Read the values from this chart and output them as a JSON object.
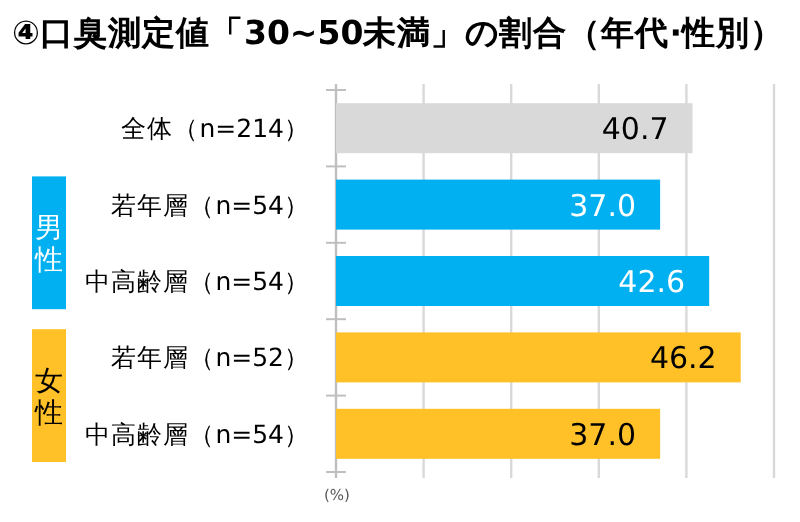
{
  "chart_data": {
    "type": "bar",
    "orientation": "horizontal",
    "title": "④口臭測定値「30~50未満」の割合（年代·性別）",
    "categories": [
      "全体（n=214）",
      "若年層（n=54）",
      "中高齢層（n=54）",
      "若年層（n=52）",
      "中高齢層（n=54）"
    ],
    "values": [
      40.7,
      37.0,
      42.6,
      46.2,
      37.0
    ],
    "colors": [
      "#d9d9d9",
      "#00b0f0",
      "#00b0f0",
      "#ffc028",
      "#ffc028"
    ],
    "xlim": [
      0,
      50
    ],
    "xticks": [
      {
        "value": 0,
        "label": null
      },
      {
        "value": 10,
        "label": null
      },
      {
        "value": 20,
        "label": null
      },
      {
        "value": 30,
        "label": null
      },
      {
        "value": 40,
        "label": null
      },
      {
        "value": 50,
        "label": null
      }
    ],
    "grid": "x",
    "value_labels": [
      "40.7",
      "37.0",
      "42.6",
      "46.2",
      "37.0"
    ],
    "annotations": [
      "男性",
      "女性",
      "(%)"
    ]
  }
}
